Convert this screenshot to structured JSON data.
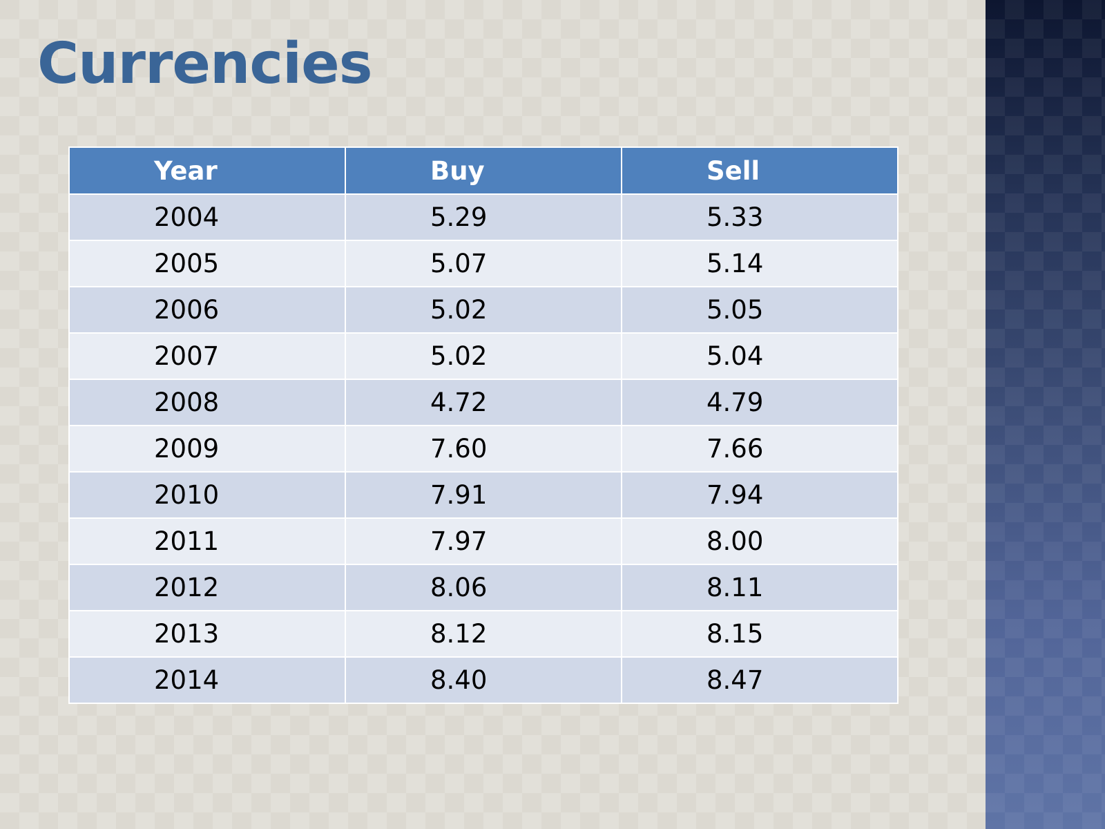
{
  "slide": {
    "title": "Currencies"
  },
  "table": {
    "headers": [
      "Year",
      "Buy",
      "Sell"
    ],
    "rows": [
      [
        "2004",
        "5.29",
        "5.33"
      ],
      [
        "2005",
        "5.07",
        "5.14"
      ],
      [
        "2006",
        "5.02",
        "5.05"
      ],
      [
        "2007",
        "5.02",
        "5.04"
      ],
      [
        "2008",
        "4.72",
        "4.79"
      ],
      [
        "2009",
        "7.60",
        "7.66"
      ],
      [
        "2010",
        "7.91",
        "7.94"
      ],
      [
        "2011",
        "7.97",
        "8.00"
      ],
      [
        "2012",
        "8.06",
        "8.11"
      ],
      [
        "2013",
        "8.12",
        "8.15"
      ],
      [
        "2014",
        "8.40",
        "8.47"
      ]
    ]
  },
  "colors": {
    "title": "#3a6597",
    "header_bg": "#4f81bd",
    "row_odd_bg": "#d0d8e8",
    "row_even_bg": "#e9edf4",
    "side_panel_top": "#0d1630",
    "side_panel_bottom": "#5f74a6"
  }
}
